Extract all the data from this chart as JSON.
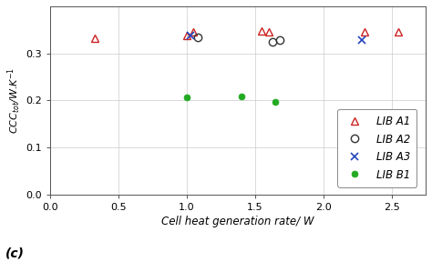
{
  "LIB_A1": {
    "x": [
      0.33,
      1.0,
      1.05,
      1.55,
      1.6,
      2.3,
      2.55
    ],
    "y": [
      0.333,
      0.338,
      0.345,
      0.348,
      0.345,
      0.345,
      0.345
    ],
    "color": "#cc2222",
    "marker": "^",
    "label": "LIB A1",
    "markersize": 6,
    "fillstyle": "none",
    "markeredgewidth": 1.0
  },
  "LIB_A2": {
    "x": [
      1.08,
      1.63,
      1.68
    ],
    "y": [
      0.334,
      0.325,
      0.328
    ],
    "color": "#333333",
    "marker": "o",
    "label": "LIB A2",
    "markersize": 6,
    "fillstyle": "none",
    "markeredgewidth": 1.0
  },
  "LIB_A3": {
    "x": [
      1.03,
      2.28
    ],
    "y": [
      0.338,
      0.328
    ],
    "color": "#2244bb",
    "marker": "x",
    "label": "LIB A3",
    "markersize": 6,
    "markeredgewidth": 1.2
  },
  "LIB_B1": {
    "x": [
      1.0,
      1.4,
      1.65
    ],
    "y": [
      0.206,
      0.208,
      0.197
    ],
    "color": "#22aa22",
    "marker": "o",
    "label": "LIB B1",
    "markersize": 5,
    "fillstyle": "full",
    "markeredgewidth": 0.5
  },
  "xlabel": "Cell heat generation rate/ W",
  "ylabel": "CCC_tot/W.K^{-1}",
  "xlim": [
    0,
    2.75
  ],
  "ylim": [
    0,
    0.4
  ],
  "xticks": [
    0,
    0.5,
    1.0,
    1.5,
    2.0,
    2.5
  ],
  "yticks": [
    0,
    0.1,
    0.2,
    0.3
  ],
  "panel_label": "(c)",
  "background_color": "#ffffff",
  "grid_color": "#cccccc",
  "grid_linewidth": 0.5
}
